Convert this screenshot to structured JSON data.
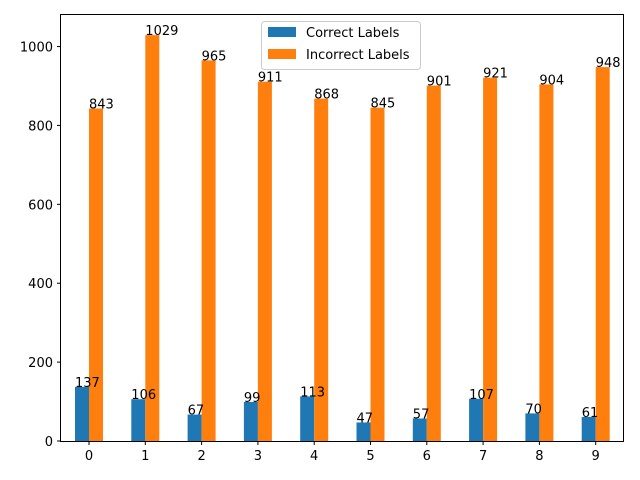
{
  "chart_data": {
    "type": "bar",
    "categories": [
      "0",
      "1",
      "2",
      "3",
      "4",
      "5",
      "6",
      "7",
      "8",
      "9"
    ],
    "series": [
      {
        "name": "Correct Labels",
        "color": "#1f77b4",
        "values": [
          137,
          106,
          67,
          99,
          113,
          47,
          57,
          107,
          70,
          61
        ]
      },
      {
        "name": "Incorrect Labels",
        "color": "#ff7f0e",
        "values": [
          843,
          1029,
          965,
          911,
          868,
          845,
          901,
          921,
          904,
          948
        ]
      }
    ],
    "title": "",
    "xlabel": "",
    "ylabel": "",
    "ylim": [
      0,
      1080
    ],
    "yticks": [
      0,
      200,
      400,
      600,
      800,
      1000
    ],
    "grid": false,
    "legend_position": "top-center"
  }
}
